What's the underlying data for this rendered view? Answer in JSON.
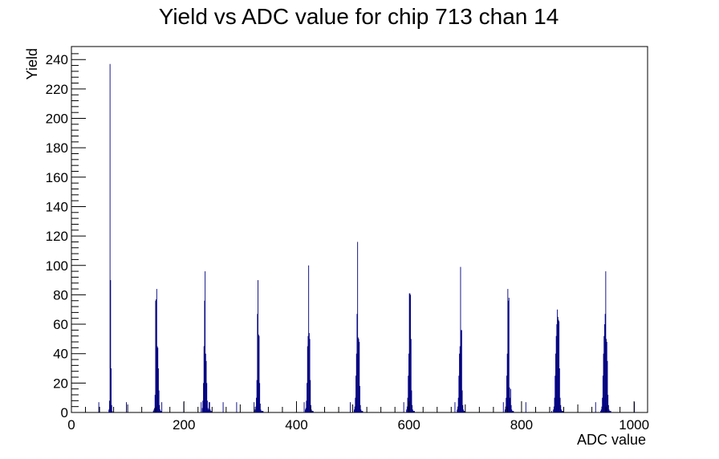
{
  "chart_data": {
    "type": "bar",
    "title": "Yield vs ADC value for chip 713 chan 14",
    "xlabel": "ADC value",
    "ylabel": "Yield",
    "xlim": [
      0,
      1024
    ],
    "ylim": [
      0,
      248.85
    ],
    "x_ticks": [
      0,
      200,
      400,
      600,
      800,
      1000
    ],
    "y_ticks": [
      0,
      20,
      40,
      60,
      80,
      100,
      120,
      140,
      160,
      180,
      200,
      220,
      240
    ],
    "grid": false,
    "legend": "none",
    "bar_color": "#000080",
    "series": [
      {
        "x": [
          48,
          66,
          67,
          68,
          69,
          70,
          71,
          72,
          97,
          145,
          146,
          147,
          148,
          149,
          150,
          151,
          152,
          153,
          154,
          155,
          156,
          157,
          158,
          159,
          160,
          199,
          230,
          232,
          233,
          234,
          235,
          236,
          237,
          238,
          239,
          240,
          241,
          242,
          243,
          244,
          245,
          246,
          247,
          248,
          269,
          293,
          324,
          326,
          327,
          328,
          329,
          330,
          331,
          332,
          333,
          334,
          335,
          336,
          337,
          338,
          339,
          340,
          413,
          415,
          416,
          417,
          418,
          419,
          420,
          421,
          422,
          423,
          424,
          425,
          426,
          427,
          428,
          429,
          495,
          502,
          503,
          504,
          505,
          506,
          507,
          508,
          509,
          510,
          511,
          512,
          513,
          514,
          515,
          516,
          517,
          590,
          595,
          596,
          597,
          598,
          599,
          600,
          601,
          602,
          603,
          604,
          605,
          606,
          607,
          608,
          609,
          681,
          685,
          686,
          687,
          688,
          689,
          690,
          691,
          692,
          693,
          694,
          695,
          696,
          697,
          698,
          767,
          770,
          771,
          772,
          773,
          774,
          775,
          776,
          777,
          778,
          779,
          780,
          781,
          782,
          783,
          784,
          785,
          807,
          853,
          856,
          857,
          858,
          859,
          860,
          861,
          862,
          863,
          864,
          865,
          866,
          867,
          868,
          869,
          870,
          871,
          872,
          873,
          874,
          931,
          940,
          941,
          942,
          943,
          944,
          945,
          946,
          947,
          948,
          949,
          950,
          951,
          952,
          953,
          954,
          955,
          956,
          957,
          958,
          1000
        ],
        "values": [
          7,
          2,
          8,
          237,
          90,
          30,
          5,
          1,
          7,
          1,
          2,
          3,
          12,
          76,
          77,
          84,
          45,
          44,
          30,
          15,
          5,
          2,
          1,
          1,
          7,
          7,
          7,
          3,
          8,
          20,
          45,
          76,
          96,
          40,
          35,
          20,
          8,
          3,
          2,
          7,
          7,
          2,
          1,
          1,
          7,
          7,
          7,
          2,
          4,
          10,
          22,
          67,
          90,
          53,
          52,
          20,
          6,
          2,
          1,
          1,
          1,
          1,
          7,
          2,
          3,
          8,
          20,
          45,
          52,
          100,
          54,
          50,
          22,
          5,
          2,
          1,
          1,
          1,
          7,
          2,
          4,
          10,
          25,
          40,
          67,
          116,
          51,
          50,
          48,
          18,
          5,
          2,
          1,
          1,
          1,
          7,
          2,
          4,
          10,
          25,
          40,
          81,
          81,
          80,
          50,
          15,
          5,
          2,
          1,
          1,
          1,
          7,
          2,
          4,
          10,
          25,
          40,
          45,
          99,
          56,
          56,
          15,
          5,
          2,
          1,
          1,
          7,
          2,
          4,
          10,
          25,
          40,
          84,
          76,
          78,
          17,
          10,
          16,
          5,
          2,
          1,
          1,
          1,
          7,
          1,
          2,
          4,
          10,
          25,
          40,
          52,
          60,
          70,
          65,
          63,
          62,
          30,
          10,
          5,
          2,
          1,
          1,
          1,
          1,
          7,
          1,
          2,
          4,
          10,
          25,
          40,
          52,
          60,
          67,
          96,
          50,
          48,
          35,
          12,
          5,
          2,
          1,
          1,
          1,
          7
        ]
      }
    ]
  }
}
